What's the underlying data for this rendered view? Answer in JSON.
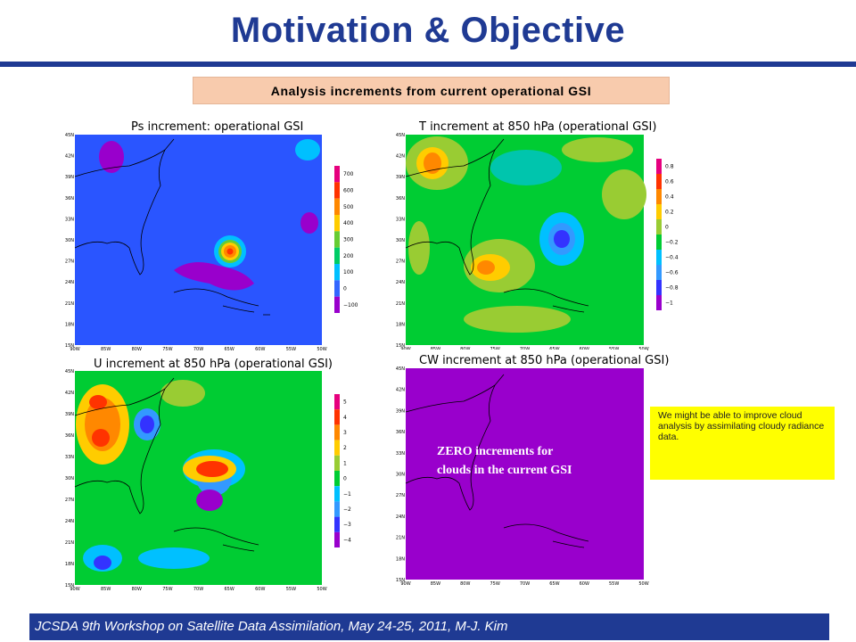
{
  "slide": {
    "title": "Motivation & Objective",
    "subtitle": "Analysis increments from current operational GSI",
    "note": "We might be able to improve cloud analysis by assimilating cloudy radiance data.",
    "footer": "JCSDA 9th Workshop on Satellite Data Assimilation, May 24-25, 2011,    M-J.  Kim"
  },
  "maps": {
    "ps": {
      "title": "Ps increment: operational GSI",
      "colorbar_labels": [
        "700",
        "600",
        "500",
        "400",
        "300",
        "200",
        "100",
        "0",
        "−100"
      ],
      "colorbar_colors": [
        "#e6007e",
        "#ff3300",
        "#ff8800",
        "#ffcc00",
        "#66cc33",
        "#00cc66",
        "#00c0ff",
        "#3366ff",
        "#9900cc"
      ]
    },
    "t": {
      "title": "T increment at 850 hPa (operational GSI)",
      "colorbar_labels": [
        "0.8",
        "0.6",
        "0.4",
        "0.2",
        "0",
        "−0.2",
        "−0.4",
        "−0.6",
        "−0.8",
        "−1"
      ],
      "colorbar_colors": [
        "#e6007e",
        "#ff3300",
        "#ff8800",
        "#ffcc00",
        "#99cc33",
        "#00cc33",
        "#00c0ff",
        "#3399ff",
        "#3333ff",
        "#9900cc"
      ]
    },
    "u": {
      "title": "U increment at 850 hPa (operational GSI)",
      "colorbar_labels": [
        "5",
        "4",
        "3",
        "2",
        "1",
        "0",
        "−1",
        "−2",
        "−3",
        "−4"
      ],
      "colorbar_colors": [
        "#e6007e",
        "#ff3300",
        "#ff8800",
        "#ffcc00",
        "#99cc33",
        "#00cc33",
        "#00c0ff",
        "#3399ff",
        "#3333ff",
        "#9900cc"
      ]
    },
    "cw": {
      "title": "CW increment at 850 hPa (operational GSI)",
      "annotation_line1": "ZERO increments for",
      "annotation_line2": "clouds in the current GSI"
    },
    "lat_labels": [
      "45N",
      "42N",
      "39N",
      "36N",
      "33N",
      "30N",
      "27N",
      "24N",
      "21N",
      "18N",
      "15N"
    ],
    "lon_labels": [
      "90W",
      "85W",
      "80W",
      "75W",
      "70W",
      "65W",
      "60W",
      "55W",
      "50W"
    ],
    "colors": {
      "ps_background": "#2a55ff",
      "cw_background": "#9900cc",
      "land_outline": "#000000"
    }
  }
}
